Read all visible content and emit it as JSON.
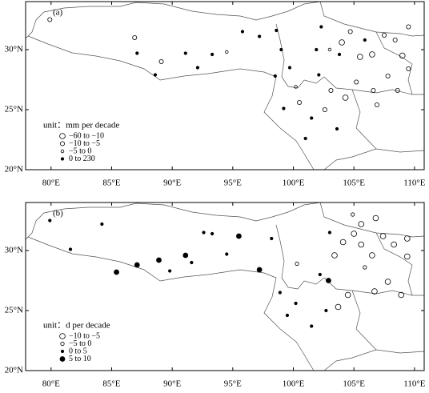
{
  "panels": [
    {
      "label": "(a)",
      "unit": "unit：mm per decade",
      "legend": [
        {
          "label": "−60  to  −10"
        },
        {
          "label": "−10  to  −5"
        },
        {
          "label": "−5  to  0"
        },
        {
          "label": "0  to  230"
        }
      ],
      "xlim": [
        77.9,
        110.8
      ],
      "ylim": [
        20,
        34
      ],
      "xticks": [
        {
          "value": 80,
          "label": "80°E"
        },
        {
          "value": 85,
          "label": "85°E"
        },
        {
          "value": 90,
          "label": "90°E"
        },
        {
          "value": 95,
          "label": "95°E"
        },
        {
          "value": 100,
          "label": "100°E"
        },
        {
          "value": 105,
          "label": "105°E"
        },
        {
          "value": 110,
          "label": "110°E"
        }
      ],
      "yticks": [
        {
          "value": 20,
          "label": "20°N"
        },
        {
          "value": 25,
          "label": "25°N"
        },
        {
          "value": 30,
          "label": "30°N"
        }
      ],
      "stations": [
        {
          "lon": 79.9,
          "lat": 32.5,
          "class": 1
        },
        {
          "lon": 86.9,
          "lat": 31.0,
          "class": 1
        },
        {
          "lon": 87.1,
          "lat": 29.7,
          "class": 3
        },
        {
          "lon": 88.6,
          "lat": 27.9,
          "class": 3
        },
        {
          "lon": 89.1,
          "lat": 29.0,
          "class": 1
        },
        {
          "lon": 91.1,
          "lat": 29.7,
          "class": 3
        },
        {
          "lon": 92.1,
          "lat": 28.5,
          "class": 3
        },
        {
          "lon": 93.3,
          "lat": 29.6,
          "class": 3
        },
        {
          "lon": 94.5,
          "lat": 29.8,
          "class": 2
        },
        {
          "lon": 95.8,
          "lat": 31.5,
          "class": 3
        },
        {
          "lon": 97.2,
          "lat": 31.1,
          "class": 3
        },
        {
          "lon": 98.6,
          "lat": 31.6,
          "class": 3
        },
        {
          "lon": 99.0,
          "lat": 30.0,
          "class": 3
        },
        {
          "lon": 98.5,
          "lat": 27.8,
          "class": 3
        },
        {
          "lon": 99.7,
          "lat": 28.5,
          "class": 3
        },
        {
          "lon": 100.2,
          "lat": 26.9,
          "class": 2
        },
        {
          "lon": 99.2,
          "lat": 25.1,
          "class": 3
        },
        {
          "lon": 100.5,
          "lat": 25.6,
          "class": 1
        },
        {
          "lon": 101.5,
          "lat": 24.3,
          "class": 3
        },
        {
          "lon": 102.6,
          "lat": 25.0,
          "class": 1
        },
        {
          "lon": 103.6,
          "lat": 23.4,
          "class": 3
        },
        {
          "lon": 101.0,
          "lat": 22.6,
          "class": 3
        },
        {
          "lon": 102.1,
          "lat": 27.9,
          "class": 3
        },
        {
          "lon": 103.1,
          "lat": 26.6,
          "class": 1
        },
        {
          "lon": 104.0,
          "lat": 30.6,
          "class": 0
        },
        {
          "lon": 104.7,
          "lat": 31.5,
          "class": 1
        },
        {
          "lon": 105.5,
          "lat": 29.4,
          "class": 0
        },
        {
          "lon": 106.5,
          "lat": 29.6,
          "class": 0
        },
        {
          "lon": 107.5,
          "lat": 31.2,
          "class": 1
        },
        {
          "lon": 108.4,
          "lat": 30.8,
          "class": 1
        },
        {
          "lon": 109.5,
          "lat": 31.9,
          "class": 1
        },
        {
          "lon": 106.6,
          "lat": 26.6,
          "class": 1
        },
        {
          "lon": 107.8,
          "lat": 27.8,
          "class": 1
        },
        {
          "lon": 108.6,
          "lat": 26.6,
          "class": 1
        },
        {
          "lon": 105.9,
          "lat": 30.8,
          "class": 3
        },
        {
          "lon": 103.8,
          "lat": 29.6,
          "class": 3
        },
        {
          "lon": 105.2,
          "lat": 27.3,
          "class": 1
        },
        {
          "lon": 104.3,
          "lat": 26.0,
          "class": 0
        },
        {
          "lon": 106.9,
          "lat": 25.4,
          "class": 1
        },
        {
          "lon": 109.0,
          "lat": 29.5,
          "class": 0
        },
        {
          "lon": 109.5,
          "lat": 28.4,
          "class": 1
        },
        {
          "lon": 102.3,
          "lat": 31.9,
          "class": 3
        },
        {
          "lon": 101.9,
          "lat": 30.0,
          "class": 3
        },
        {
          "lon": 103.0,
          "lat": 30.0,
          "class": 2
        }
      ]
    },
    {
      "label": "(b)",
      "unit": "unit：d per decade",
      "legend": [
        {
          "label": "−10  to  −5"
        },
        {
          "label": "−5  to  0"
        },
        {
          "label": "0  to  5"
        },
        {
          "label": "5  to  10"
        }
      ],
      "xlim": [
        77.9,
        110.8
      ],
      "ylim": [
        20,
        34
      ],
      "xticks": [
        {
          "value": 80,
          "label": "80°E"
        },
        {
          "value": 85,
          "label": "85°E"
        },
        {
          "value": 90,
          "label": "90°E"
        },
        {
          "value": 95,
          "label": "95°E"
        },
        {
          "value": 100,
          "label": "100°E"
        },
        {
          "value": 105,
          "label": "105°E"
        },
        {
          "value": 110,
          "label": "110°E"
        }
      ],
      "yticks": [
        {
          "value": 20,
          "label": "20°N"
        },
        {
          "value": 25,
          "label": "25°N"
        },
        {
          "value": 30,
          "label": "30°N"
        }
      ],
      "stations": [
        {
          "lon": 79.9,
          "lat": 32.5,
          "class": 2
        },
        {
          "lon": 81.6,
          "lat": 30.1,
          "class": 2
        },
        {
          "lon": 84.2,
          "lat": 32.2,
          "class": 2
        },
        {
          "lon": 85.4,
          "lat": 28.2,
          "class": 3
        },
        {
          "lon": 87.1,
          "lat": 28.8,
          "class": 3
        },
        {
          "lon": 88.9,
          "lat": 29.2,
          "class": 3
        },
        {
          "lon": 89.8,
          "lat": 28.3,
          "class": 2
        },
        {
          "lon": 91.1,
          "lat": 29.6,
          "class": 3
        },
        {
          "lon": 91.6,
          "lat": 29.0,
          "class": 2
        },
        {
          "lon": 92.6,
          "lat": 31.5,
          "class": 2
        },
        {
          "lon": 93.3,
          "lat": 31.4,
          "class": 2
        },
        {
          "lon": 94.5,
          "lat": 29.7,
          "class": 2
        },
        {
          "lon": 95.5,
          "lat": 31.2,
          "class": 3
        },
        {
          "lon": 97.2,
          "lat": 28.4,
          "class": 3
        },
        {
          "lon": 98.2,
          "lat": 31.0,
          "class": 2
        },
        {
          "lon": 98.9,
          "lat": 26.5,
          "class": 2
        },
        {
          "lon": 99.5,
          "lat": 24.6,
          "class": 2
        },
        {
          "lon": 100.2,
          "lat": 25.6,
          "class": 2
        },
        {
          "lon": 101.5,
          "lat": 23.7,
          "class": 2
        },
        {
          "lon": 102.7,
          "lat": 25.0,
          "class": 2
        },
        {
          "lon": 103.7,
          "lat": 25.3,
          "class": 0
        },
        {
          "lon": 104.5,
          "lat": 26.3,
          "class": 0
        },
        {
          "lon": 102.2,
          "lat": 28.0,
          "class": 2
        },
        {
          "lon": 103.4,
          "lat": 29.6,
          "class": 0
        },
        {
          "lon": 104.1,
          "lat": 30.7,
          "class": 0
        },
        {
          "lon": 105.0,
          "lat": 31.4,
          "class": 0
        },
        {
          "lon": 105.6,
          "lat": 30.5,
          "class": 0
        },
        {
          "lon": 106.5,
          "lat": 29.6,
          "class": 0
        },
        {
          "lon": 107.4,
          "lat": 31.2,
          "class": 0
        },
        {
          "lon": 108.3,
          "lat": 30.5,
          "class": 0
        },
        {
          "lon": 109.4,
          "lat": 31.0,
          "class": 0
        },
        {
          "lon": 106.7,
          "lat": 26.6,
          "class": 0
        },
        {
          "lon": 107.8,
          "lat": 27.4,
          "class": 0
        },
        {
          "lon": 108.9,
          "lat": 26.3,
          "class": 0
        },
        {
          "lon": 109.4,
          "lat": 29.5,
          "class": 0
        },
        {
          "lon": 105.9,
          "lat": 28.6,
          "class": 1
        },
        {
          "lon": 103.0,
          "lat": 31.5,
          "class": 2
        },
        {
          "lon": 104.9,
          "lat": 33.0,
          "class": 1
        },
        {
          "lon": 106.8,
          "lat": 32.7,
          "class": 0
        },
        {
          "lon": 102.9,
          "lat": 27.5,
          "class": 3
        },
        {
          "lon": 105.6,
          "lat": 32.2,
          "class": 0
        },
        {
          "lon": 100.3,
          "lat": 28.9,
          "class": 1
        }
      ]
    }
  ]
}
